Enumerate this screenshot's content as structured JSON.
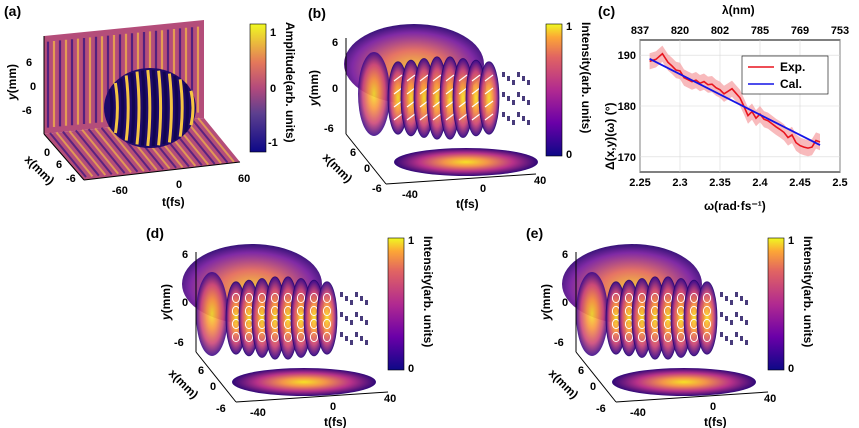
{
  "panels": [
    {
      "label": "(a)",
      "type": "3d-wavepacket",
      "x_label": "x(mm)",
      "y_label": "y",
      "y_unit": "(mm)",
      "t_label": "t(fs)",
      "x_ticks": [
        "0",
        "6",
        "-6"
      ],
      "y_ticks": [
        "6",
        "0",
        "-6"
      ],
      "t_ticks": [
        "-60",
        "0",
        "60"
      ],
      "colorbar": {
        "label": "Amplitude(arb. units)",
        "ticks": [
          "1",
          "0",
          "-1"
        ],
        "range": [
          -1.2,
          1.2
        ],
        "colormap": "plasma-diverging"
      }
    },
    {
      "label": "(b)",
      "type": "3d-intensity-slices",
      "x_label": "x(mm)",
      "y_label": "y",
      "y_unit": "(mm)",
      "t_label": "t(fs)",
      "x_ticks": [
        "6",
        "0",
        "-6"
      ],
      "y_ticks": [
        "6",
        "0",
        "-6"
      ],
      "t_ticks": [
        "-40",
        "0",
        "40"
      ],
      "colorbar": {
        "label": "Intensity(arb. units)",
        "ticks": [
          "1",
          "0"
        ],
        "range": [
          0,
          1
        ],
        "colormap": "plasma"
      }
    },
    {
      "label": "(d)",
      "type": "3d-intensity-slices",
      "x_label": "x(mm)",
      "y_label": "y",
      "y_unit": "(mm)",
      "t_label": "t(fs)",
      "x_ticks": [
        "6",
        "0",
        "-6"
      ],
      "y_ticks": [
        "6",
        "0",
        "-6"
      ],
      "t_ticks": [
        "-40",
        "0",
        "40"
      ],
      "colorbar": {
        "label": "Intensity(arb. units)",
        "ticks": [
          "1",
          "0"
        ],
        "range": [
          0,
          1
        ],
        "colormap": "plasma"
      }
    },
    {
      "label": "(e)",
      "type": "3d-intensity-slices",
      "x_label": "x(mm)",
      "y_label": "y",
      "y_unit": "(mm)",
      "t_label": "t(fs)",
      "x_ticks": [
        "6",
        "0",
        "-6"
      ],
      "y_ticks": [
        "6",
        "0",
        "-6"
      ],
      "t_ticks": [
        "-40",
        "0",
        "40"
      ],
      "colorbar": {
        "label": "Intensity(arb. units)",
        "ticks": [
          "1",
          "0"
        ],
        "range": [
          0,
          1
        ],
        "colormap": "plasma"
      }
    }
  ],
  "chart_data": {
    "label": "(c)",
    "type": "line",
    "xlabel": "ω(rad·fs⁻¹)",
    "ylabel": "Δ(x,y)(ω) (°)",
    "top_xlabel": "λ(nm)",
    "xlim": [
      2.25,
      2.5
    ],
    "ylim": [
      167,
      193
    ],
    "x_ticks": [
      "2.25",
      "2.3",
      "2.35",
      "2.4",
      "2.45",
      "2.5"
    ],
    "y_ticks": [
      "170",
      "180",
      "190"
    ],
    "top_ticks": [
      "837",
      "820",
      "802",
      "785",
      "769",
      "753"
    ],
    "grid": true,
    "legend_position": "top-right",
    "colors": {
      "exp": "#e8141e",
      "exp_band": "#f6a3a6",
      "cal": "#1414e6"
    },
    "series": [
      {
        "name": "Exp.",
        "x": [
          2.262,
          2.27,
          2.278,
          2.285,
          2.29,
          2.295,
          2.3,
          2.305,
          2.31,
          2.315,
          2.32,
          2.325,
          2.33,
          2.335,
          2.34,
          2.345,
          2.35,
          2.355,
          2.36,
          2.365,
          2.37,
          2.375,
          2.38,
          2.385,
          2.39,
          2.395,
          2.4,
          2.405,
          2.41,
          2.415,
          2.42,
          2.425,
          2.43,
          2.435,
          2.44,
          2.445,
          2.45,
          2.455,
          2.46,
          2.465,
          2.47,
          2.475
        ],
        "y": [
          188.8,
          189.2,
          190.3,
          188.6,
          187.9,
          187.1,
          186.9,
          185.6,
          185.2,
          184.8,
          185.1,
          184.5,
          184.8,
          184.2,
          184.3,
          183.6,
          183.2,
          182.4,
          182.9,
          183.4,
          182.5,
          181.6,
          179.9,
          178.1,
          178.9,
          177.6,
          178.4,
          177.4,
          177.1,
          176.5,
          175.9,
          175.4,
          174.8,
          173.8,
          174.3,
          172.8,
          172.2,
          171.9,
          171.7,
          171.9,
          173.2,
          172.9
        ],
        "band": 1.6
      },
      {
        "name": "Cal.",
        "x": [
          2.262,
          2.475
        ],
        "y": [
          189.3,
          172.3
        ]
      }
    ]
  }
}
